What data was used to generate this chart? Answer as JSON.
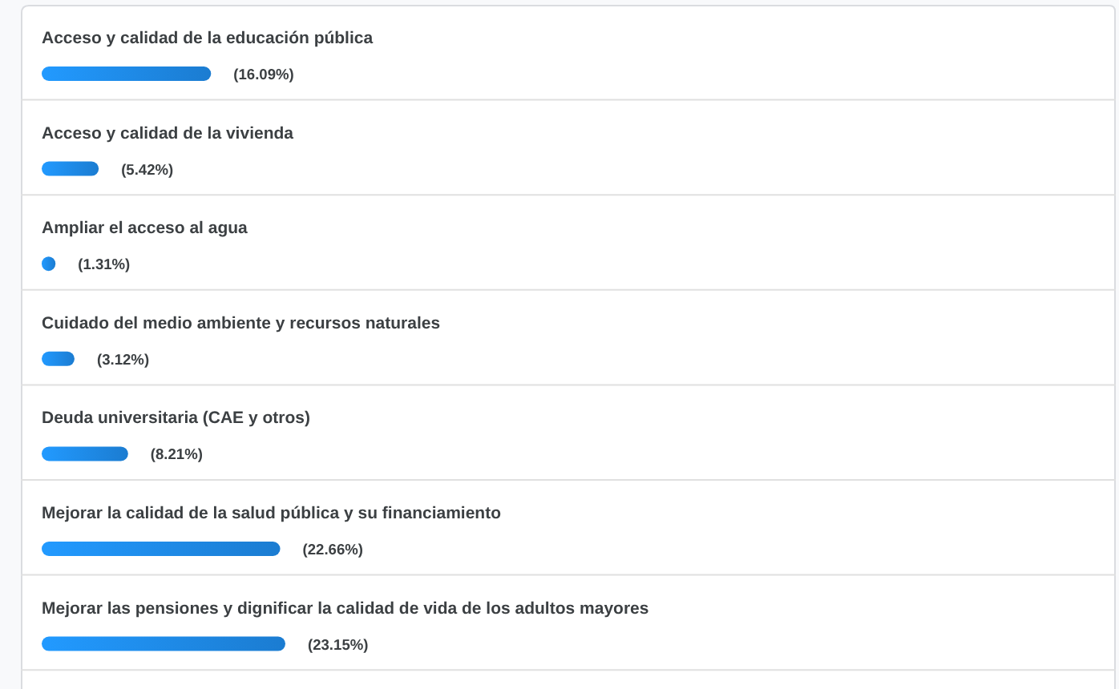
{
  "chart_data": {
    "type": "bar",
    "orientation": "horizontal",
    "categories": [
      "Acceso y calidad de la educación pública",
      "Acceso y calidad de la vivienda",
      "Ampliar el acceso al agua",
      "Cuidado del medio ambiente y recursos naturales",
      "Deuda universitaria (CAE y otros)",
      "Mejorar la calidad de la salud pública y su financiamiento",
      "Mejorar las pensiones y dignificar la calidad de vida de los adultos mayores"
    ],
    "values": [
      16.09,
      5.42,
      1.31,
      3.12,
      8.21,
      22.66,
      23.15
    ],
    "value_labels": [
      "(16.09%)",
      "(5.42%)",
      "(1.31%)",
      "(3.12%)",
      "(8.21%)",
      "(22.66%)",
      "(23.15%)"
    ],
    "color": "#1e88e5"
  }
}
